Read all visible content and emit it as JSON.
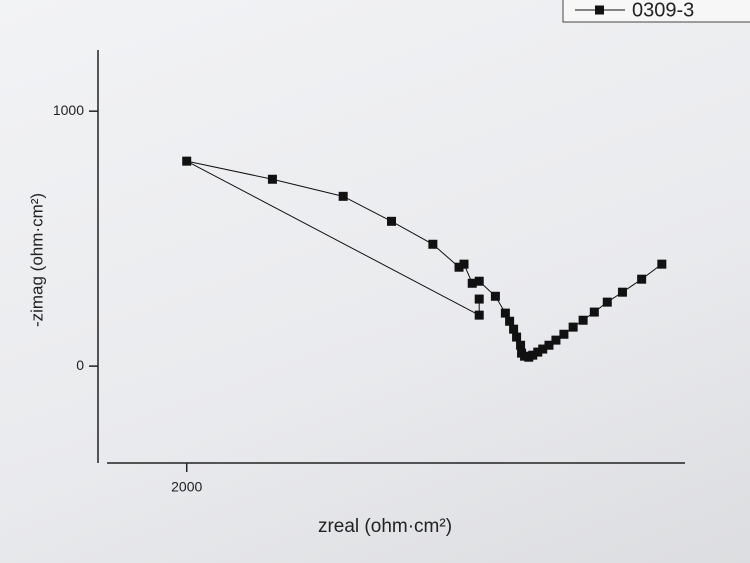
{
  "chart_data": {
    "type": "line",
    "x_label": "zreal (ohm·cm²)",
    "y_label": "-zimag (ohm·cm²)",
    "x": [
      3907,
      3826,
      3749,
      3688,
      3636,
      3591,
      3551,
      3514,
      3482,
      3454,
      3429,
      3409,
      3389,
      3373,
      3356,
      3344,
      3340,
      3324,
      3312,
      3296,
      3279,
      3239,
      3174,
      3146,
      3113,
      3093,
      2988,
      2822,
      2628,
      2344,
      2000,
      3174,
      3174
    ],
    "series": [
      {
        "name": "0309-3",
        "color": "#111111",
        "values": [
          400,
          341,
          290,
          251,
          212,
          180,
          153,
          125,
          102,
          82,
          67,
          55,
          43,
          35,
          39,
          51,
          82,
          114,
          145,
          176,
          208,
          274,
          333,
          325,
          400,
          388,
          478,
          568,
          666,
          733,
          804,
          200,
          263
        ]
      }
    ],
    "xlim": [
      1680,
      4000
    ],
    "xticks": [
      2000
    ],
    "ylim": [
      -380,
      1240
    ],
    "yticks": [
      0,
      1000
    ],
    "legend": "top-right"
  }
}
